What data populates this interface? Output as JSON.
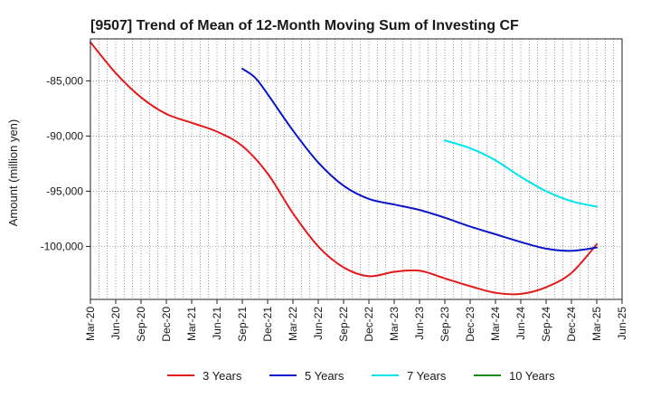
{
  "chart_data": {
    "type": "line",
    "title": "[9507]  Trend of Mean of 12-Month Moving Sum of Investing CF",
    "xlabel": "",
    "ylabel": "Amount (million yen)",
    "ylim": [
      -104800,
      -81200
    ],
    "grid": true,
    "legend_position": "bottom",
    "categories": [
      "Mar-20",
      "Jun-20",
      "Sep-20",
      "Dec-20",
      "Mar-21",
      "Jun-21",
      "Sep-21",
      "Dec-21",
      "Mar-22",
      "Jun-22",
      "Sep-22",
      "Dec-22",
      "Mar-23",
      "Jun-23",
      "Sep-23",
      "Dec-23",
      "Mar-24",
      "Jun-24",
      "Sep-24",
      "Dec-24",
      "Mar-25",
      "Jun-25"
    ],
    "y_ticks": [
      -100000,
      -95000,
      -90000,
      -85000
    ],
    "y_tick_labels": [
      "-100,000",
      "-95,000",
      "-90,000",
      "-85,000"
    ],
    "series": [
      {
        "name": "3 Years",
        "color": "#e31a1c",
        "points": [
          [
            0,
            -81500
          ],
          [
            1,
            -84300
          ],
          [
            2,
            -86500
          ],
          [
            3,
            -88000
          ],
          [
            4,
            -88800
          ],
          [
            5,
            -89600
          ],
          [
            6,
            -90900
          ],
          [
            7,
            -93400
          ],
          [
            8,
            -97000
          ],
          [
            9,
            -100000
          ],
          [
            10,
            -101900
          ],
          [
            11,
            -102700
          ],
          [
            12,
            -102300
          ],
          [
            13,
            -102200
          ],
          [
            14,
            -102900
          ],
          [
            15,
            -103600
          ],
          [
            16,
            -104200
          ],
          [
            17,
            -104300
          ],
          [
            18,
            -103700
          ],
          [
            19,
            -102400
          ],
          [
            20,
            -99800
          ]
        ]
      },
      {
        "name": "5 Years",
        "color": "#0a14c8",
        "points": [
          [
            6,
            -83900
          ],
          [
            6.5,
            -84700
          ],
          [
            7,
            -86200
          ],
          [
            8,
            -89500
          ],
          [
            9,
            -92400
          ],
          [
            10,
            -94500
          ],
          [
            11,
            -95700
          ],
          [
            12,
            -96200
          ],
          [
            13,
            -96700
          ],
          [
            14,
            -97400
          ],
          [
            15,
            -98200
          ],
          [
            16,
            -98900
          ],
          [
            17,
            -99600
          ],
          [
            18,
            -100200
          ],
          [
            19,
            -100400
          ],
          [
            20,
            -100100
          ]
        ]
      },
      {
        "name": "7 Years",
        "color": "#00e5ee",
        "points": [
          [
            14,
            -90400
          ],
          [
            15,
            -91100
          ],
          [
            16,
            -92200
          ],
          [
            17,
            -93700
          ],
          [
            18,
            -95000
          ],
          [
            19,
            -95900
          ],
          [
            20,
            -96400
          ]
        ]
      },
      {
        "name": "10 Years",
        "color": "#1a8c1a",
        "points": []
      }
    ]
  }
}
